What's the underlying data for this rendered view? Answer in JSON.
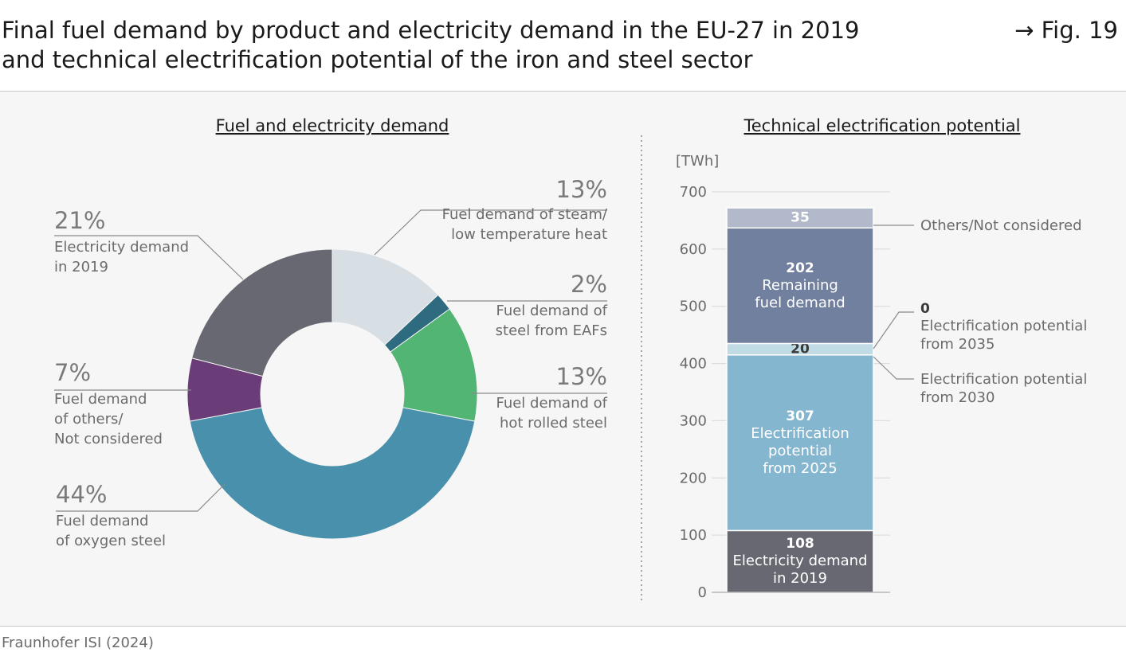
{
  "header": {
    "title_line1": "Final fuel demand by product and electricity demand in the EU-27 in 2019",
    "title_line2": "and technical electrification potential of the iron and steel sector",
    "figure_ref": "→ Fig. 19"
  },
  "footer": {
    "source": "Fraunhofer ISI (2024)"
  },
  "colors": {
    "steam": "#d7dee4",
    "eaf": "#2e6a80",
    "hot_rolled": "#52b574",
    "oxygen": "#4890ab",
    "others": "#6a3d78",
    "electricity": "#686872",
    "bar_others": "#b2b9ca",
    "bar_remaining": "#70809e",
    "bar_pot2030": "#c1dbe5",
    "bar_pot2025": "#85b6cf",
    "bar_electricity": "#686872"
  },
  "chart_data": [
    {
      "type": "pie",
      "title": "Fuel and electricity demand",
      "donut": true,
      "slices": [
        {
          "pct_label": "13%",
          "value": 13,
          "label_lines": [
            "Fuel demand of steam/",
            "low temperature heat"
          ],
          "color_key": "steam"
        },
        {
          "pct_label": "2%",
          "value": 2,
          "label_lines": [
            "Fuel demand of",
            "steel from EAFs"
          ],
          "color_key": "eaf"
        },
        {
          "pct_label": "13%",
          "value": 13,
          "label_lines": [
            "Fuel demand of",
            "hot rolled steel"
          ],
          "color_key": "hot_rolled"
        },
        {
          "pct_label": "44%",
          "value": 44,
          "label_lines": [
            "Fuel demand",
            "of oxygen steel"
          ],
          "color_key": "oxygen"
        },
        {
          "pct_label": "7%",
          "value": 7,
          "label_lines": [
            "Fuel demand",
            "of others/",
            "Not considered"
          ],
          "color_key": "others"
        },
        {
          "pct_label": "21%",
          "value": 21,
          "label_lines": [
            "Electricity demand",
            "in 2019"
          ],
          "color_key": "electricity"
        }
      ]
    },
    {
      "type": "bar",
      "stacked": true,
      "title": "Technical electrification potential",
      "unit_label": "[TWh]",
      "ylim": [
        0,
        700
      ],
      "yticks": [
        0,
        100,
        200,
        300,
        400,
        500,
        600,
        700
      ],
      "segments": [
        {
          "value": 108,
          "value_label": "108",
          "inner_lines": [
            "Electricity demand",
            "in 2019"
          ],
          "outside_lines": [],
          "color_key": "bar_electricity",
          "text_color": "#ffffff"
        },
        {
          "value": 307,
          "value_label": "307",
          "inner_lines": [
            "Electrification",
            "potential",
            "from 2025"
          ],
          "outside_lines": [],
          "color_key": "bar_pot2025",
          "text_color": "#ffffff"
        },
        {
          "value": 20,
          "value_label": "20",
          "inner_lines": [],
          "outside_lines": [
            "Electrification potential",
            "from 2030"
          ],
          "color_key": "bar_pot2030",
          "text_color": "#3a3a3a"
        },
        {
          "value": 0,
          "value_label": "0",
          "inner_lines": [],
          "outside_lines": [
            "Electrification potential",
            "from 2035"
          ],
          "color_key": "bar_pot2030",
          "text_color": "#3a3a3a"
        },
        {
          "value": 202,
          "value_label": "202",
          "inner_lines": [
            "Remaining",
            "fuel demand"
          ],
          "outside_lines": [],
          "color_key": "bar_remaining",
          "text_color": "#ffffff"
        },
        {
          "value": 35,
          "value_label": "35",
          "inner_lines": [],
          "outside_lines": [
            "Others/Not considered"
          ],
          "color_key": "bar_others",
          "text_color": "#ffffff"
        }
      ]
    }
  ]
}
